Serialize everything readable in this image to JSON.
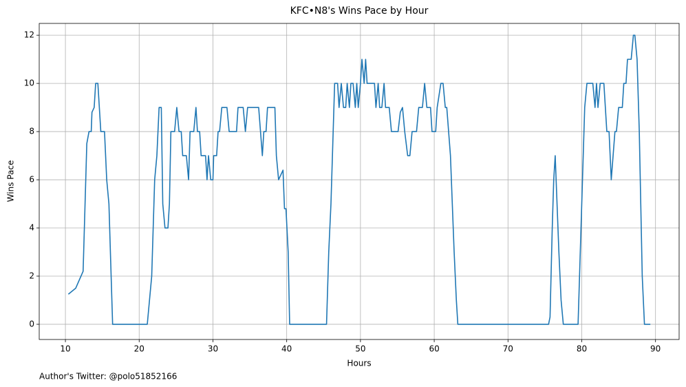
{
  "chart_data": {
    "type": "line",
    "title": "KFC•N8's Wins Pace by Hour",
    "xlabel": "Hours",
    "ylabel": "Wins Pace",
    "footnote": "Author's Twitter: @polo51852166",
    "x": [
      10.4,
      11.4,
      12.4,
      12.9,
      13.2,
      13.5,
      13.6,
      13.9,
      14.1,
      14.4,
      14.8,
      15.3,
      15.6,
      15.9,
      16.2,
      16.4,
      21.1,
      21.7,
      22.1,
      22.4,
      22.7,
      23.0,
      23.2,
      23.5,
      23.9,
      24.1,
      24.3,
      24.8,
      25.1,
      25.4,
      25.7,
      25.9,
      26.4,
      26.7,
      26.9,
      27.4,
      27.7,
      27.9,
      28.2,
      28.4,
      29.0,
      29.2,
      29.4,
      29.7,
      30.0,
      30.1,
      30.5,
      30.7,
      30.9,
      31.2,
      31.9,
      32.2,
      33.2,
      33.4,
      34.1,
      34.4,
      34.7,
      36.2,
      36.7,
      36.9,
      37.2,
      37.4,
      38.4,
      38.6,
      38.9,
      39.5,
      39.7,
      39.9,
      40.2,
      40.4,
      45.4,
      45.7,
      46.0,
      46.3,
      46.5,
      46.9,
      47.1,
      47.4,
      47.7,
      48.0,
      48.2,
      48.5,
      48.7,
      49.0,
      49.3,
      49.5,
      49.7,
      50.0,
      50.2,
      50.5,
      50.7,
      50.9,
      51.9,
      52.1,
      52.4,
      52.6,
      52.9,
      53.2,
      53.4,
      53.9,
      54.2,
      55.1,
      55.4,
      55.7,
      56.0,
      56.4,
      56.7,
      57.0,
      57.6,
      57.9,
      58.4,
      58.7,
      59.0,
      59.5,
      59.7,
      60.2,
      60.4,
      60.9,
      61.2,
      61.5,
      61.7,
      62.2,
      62.7,
      63.0,
      63.2,
      75.5,
      75.7,
      76.0,
      76.2,
      76.4,
      76.9,
      77.2,
      77.5,
      79.5,
      79.9,
      80.2,
      80.4,
      80.7,
      81.5,
      81.8,
      82.0,
      82.2,
      82.5,
      83.0,
      83.4,
      83.7,
      84.0,
      84.5,
      84.7,
      85.0,
      85.5,
      85.7,
      86.0,
      86.2,
      86.7,
      87.0,
      87.2,
      87.5,
      87.8,
      88.0,
      88.2,
      88.5,
      89.3
    ],
    "series": [
      {
        "name": "Wins Pace",
        "color": "#1f77b4",
        "values": [
          1.25,
          1.5,
          2.2,
          7.5,
          8,
          8,
          8.8,
          9,
          10,
          10,
          8,
          8,
          6,
          5,
          2,
          0,
          0,
          2,
          6,
          7,
          9,
          9,
          5,
          4,
          4,
          5,
          8,
          8,
          9,
          8,
          8,
          7,
          7,
          6,
          8,
          8,
          9,
          8,
          8,
          7,
          7,
          6,
          7,
          6,
          6,
          7,
          7,
          8,
          8,
          9,
          9,
          8,
          8,
          9,
          9,
          8,
          9,
          9,
          7,
          8,
          8,
          9,
          9,
          7,
          6,
          6.4,
          4.8,
          4.8,
          3,
          0,
          0,
          3,
          5,
          8,
          10,
          10,
          9,
          10,
          9,
          9,
          10,
          9,
          10,
          10,
          9,
          10,
          9,
          10,
          11,
          10,
          11,
          10,
          10,
          9,
          10,
          9,
          9,
          10,
          9,
          9,
          8,
          8,
          8.8,
          9,
          8,
          7,
          7,
          8,
          8,
          9,
          9,
          10,
          9,
          9,
          8,
          8,
          9,
          10,
          10,
          9,
          9,
          7,
          3,
          1,
          0,
          0,
          0.3,
          4,
          6,
          7,
          3,
          1,
          0,
          0,
          4,
          7,
          9,
          10,
          10,
          9,
          10,
          9,
          10,
          10,
          8,
          8,
          6,
          8,
          8,
          9,
          9,
          10,
          10,
          11,
          11,
          12,
          12,
          11,
          8,
          5,
          2,
          0,
          0
        ]
      }
    ],
    "xlim": [
      6.45,
      93.2
    ],
    "ylim": [
      -0.63,
      12.49
    ],
    "xticks": [
      10,
      20,
      30,
      40,
      50,
      60,
      70,
      80,
      90
    ],
    "yticks": [
      0,
      2,
      4,
      6,
      8,
      10,
      12
    ],
    "grid": true
  }
}
